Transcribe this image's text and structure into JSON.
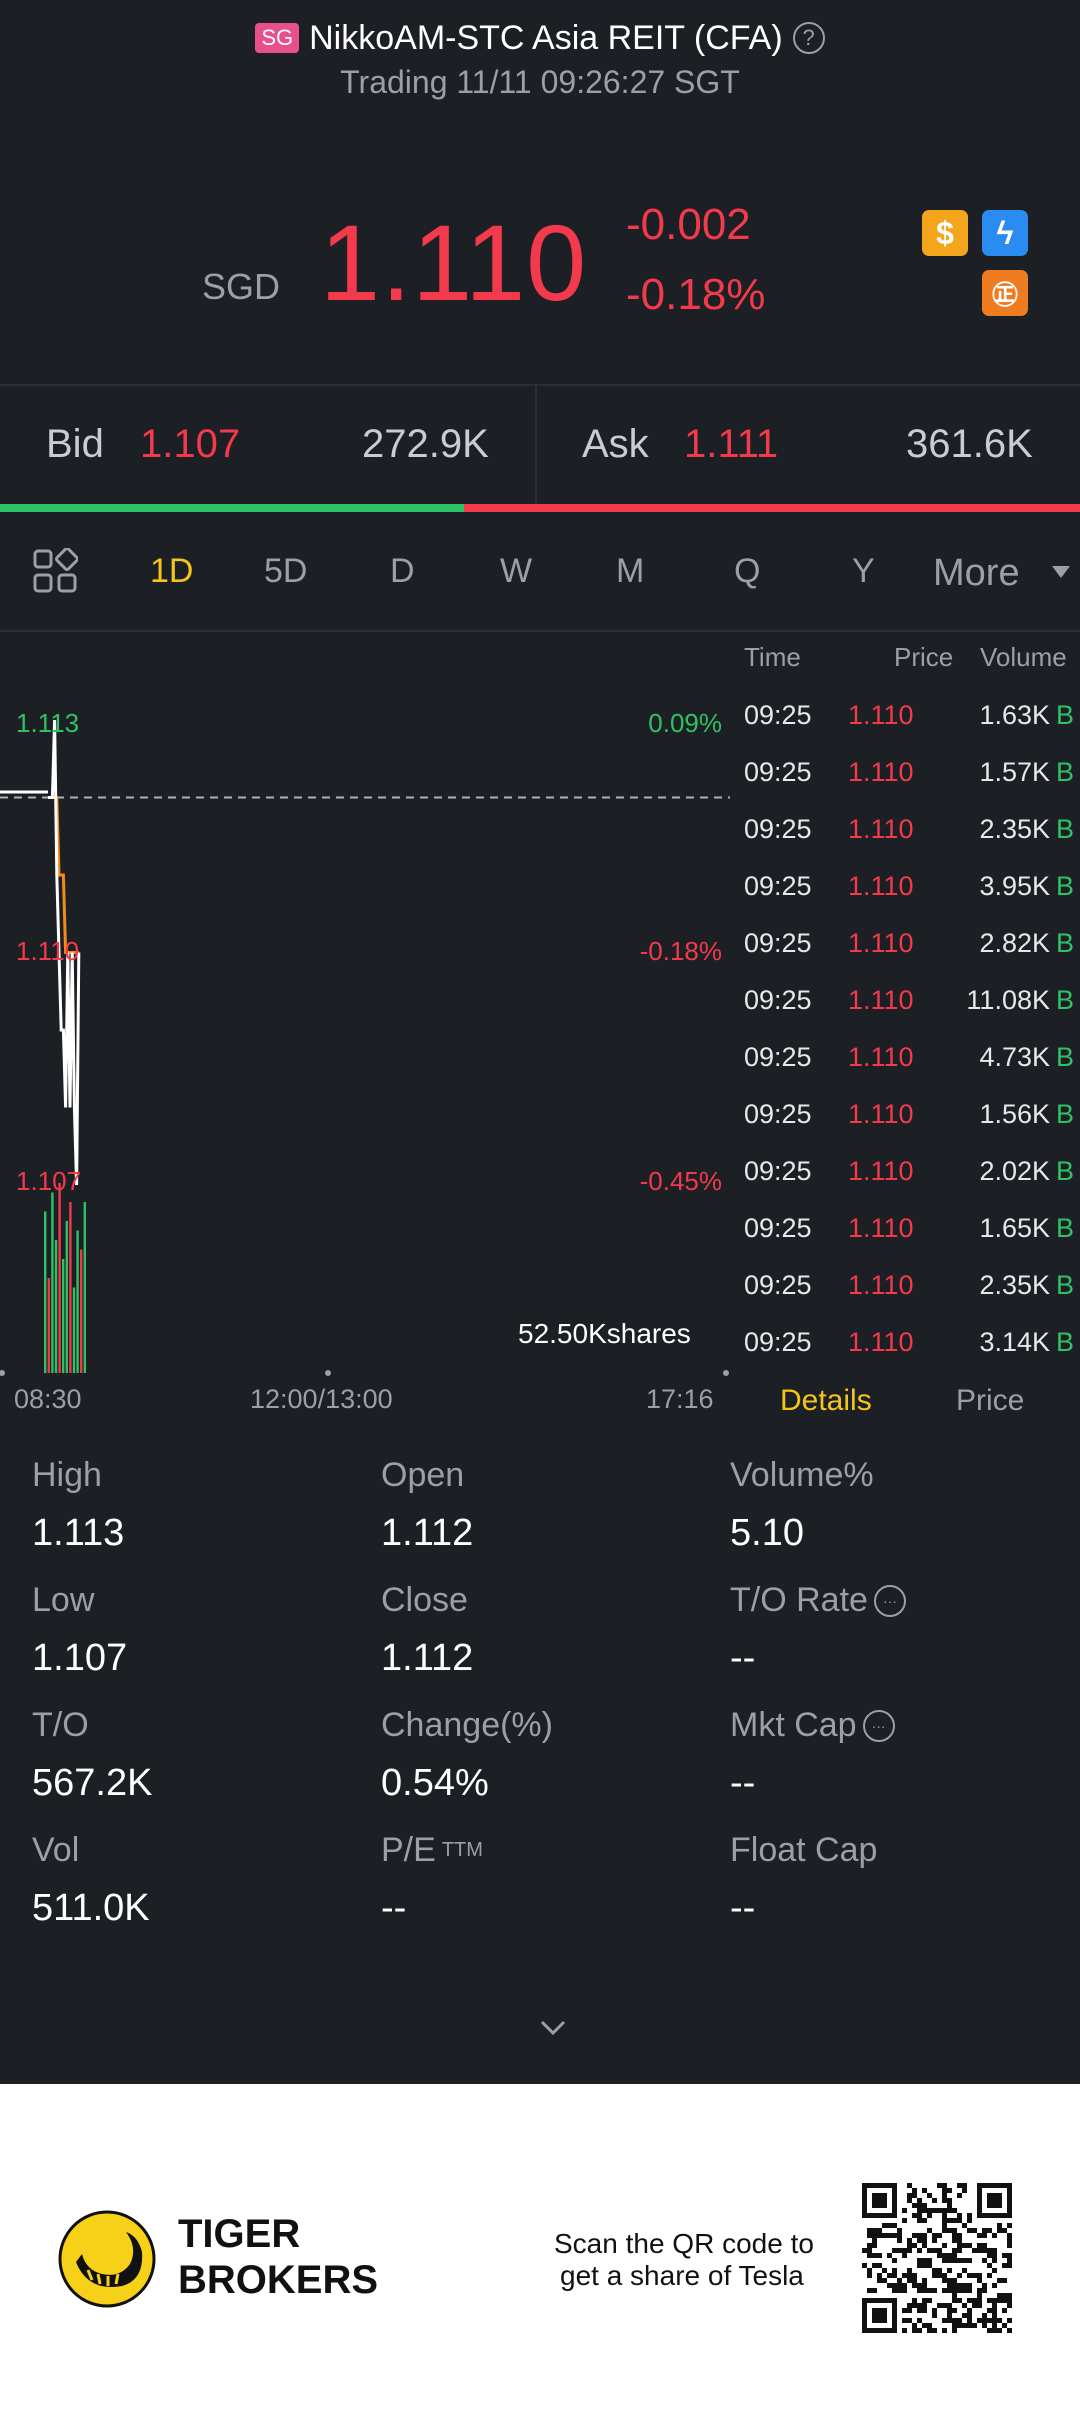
{
  "header": {
    "market_badge": "SG",
    "title": "NikkoAM-STC Asia REIT (CFA)",
    "help_icon": "?",
    "status": "Trading 11/11 09:26:27 SGT"
  },
  "quote": {
    "currency": "SGD",
    "last_price": "1.110",
    "change": "-0.002",
    "change_pct": "-0.18%",
    "price_color": "#f23a4c",
    "icons": [
      "dollar-icon",
      "flash-icon",
      "tiger-icon"
    ],
    "icon_glyphs": {
      "dollar": "$",
      "flash": "ϟ",
      "tiger": "㊣"
    }
  },
  "bid_ask": {
    "bid_label": "Bid",
    "bid_price": "1.107",
    "bid_volume": "272.9K",
    "ask_label": "Ask",
    "ask_price": "1.111",
    "ask_volume": "361.6K",
    "bid_ratio": 0.43
  },
  "tabs": {
    "items": [
      "1D",
      "5D",
      "D",
      "W",
      "M",
      "Q",
      "Y"
    ],
    "active": "1D",
    "more": "More"
  },
  "chart_data": {
    "type": "line",
    "price_labels": [
      {
        "price": "1.113",
        "pct": "0.09%"
      },
      {
        "price": "1.110",
        "pct": "-0.18%"
      },
      {
        "price": "1.107",
        "pct": "-0.45%"
      }
    ],
    "prev_close": 1.112,
    "ylim": [
      1.107,
      1.113
    ],
    "price_series": [
      1.112,
      1.112,
      1.112,
      1.113,
      1.111,
      1.11,
      1.109,
      1.109,
      1.108,
      1.11,
      1.108,
      1.11,
      1.108,
      1.107,
      1.11
    ],
    "avg_series": [
      1.112,
      1.112,
      1.112,
      1.112,
      1.112,
      1.111,
      1.111,
      1.111,
      1.11,
      1.11,
      1.11,
      1.11,
      1.11,
      1.11,
      1.11
    ],
    "volume_bars": [
      0.85,
      0.5,
      0.95,
      0.7,
      1.0,
      0.6,
      0.8,
      0.9,
      0.45,
      0.75,
      0.65,
      0.9
    ],
    "volume_label": "52.50Kshares",
    "time_axis": [
      "08:30",
      "12:00/13:00",
      "17:16"
    ]
  },
  "time_sales": {
    "headers": {
      "time": "Time",
      "price": "Price",
      "volume": "Volume"
    },
    "rows": [
      {
        "time": "09:25",
        "price": "1.110",
        "volume": "1.63K",
        "side": "B"
      },
      {
        "time": "09:25",
        "price": "1.110",
        "volume": "1.57K",
        "side": "B"
      },
      {
        "time": "09:25",
        "price": "1.110",
        "volume": "2.35K",
        "side": "B"
      },
      {
        "time": "09:25",
        "price": "1.110",
        "volume": "3.95K",
        "side": "B"
      },
      {
        "time": "09:25",
        "price": "1.110",
        "volume": "2.82K",
        "side": "B"
      },
      {
        "time": "09:25",
        "price": "1.110",
        "volume": "11.08K",
        "side": "B"
      },
      {
        "time": "09:25",
        "price": "1.110",
        "volume": "4.73K",
        "side": "B"
      },
      {
        "time": "09:25",
        "price": "1.110",
        "volume": "1.56K",
        "side": "B"
      },
      {
        "time": "09:25",
        "price": "1.110",
        "volume": "2.02K",
        "side": "B"
      },
      {
        "time": "09:25",
        "price": "1.110",
        "volume": "1.65K",
        "side": "B"
      },
      {
        "time": "09:25",
        "price": "1.110",
        "volume": "2.35K",
        "side": "B"
      },
      {
        "time": "09:25",
        "price": "1.110",
        "volume": "3.14K",
        "side": "B"
      }
    ],
    "tab_details": "Details",
    "tab_price": "Price"
  },
  "stats": {
    "col1": [
      {
        "label": "High",
        "value": "1.113"
      },
      {
        "label": "Low",
        "value": "1.107"
      },
      {
        "label": "T/O",
        "value": "567.2K"
      },
      {
        "label": "Vol",
        "value": "511.0K"
      }
    ],
    "col2": [
      {
        "label": "Open",
        "value": "1.112"
      },
      {
        "label": "Close",
        "value": "1.112"
      },
      {
        "label": "Change(%)",
        "value": "0.54%"
      },
      {
        "label": "P/E",
        "label_sup": "TTM",
        "value": "--"
      }
    ],
    "col3": [
      {
        "label": "Volume%",
        "value": "5.10"
      },
      {
        "label": "T/O Rate",
        "value": "--",
        "info": true
      },
      {
        "label": "Mkt Cap",
        "value": "--",
        "info": true
      },
      {
        "label": "Float Cap",
        "value": "--"
      }
    ],
    "info_glyph": "···"
  },
  "footer": {
    "brand_line_1": "TIGER",
    "brand_line_2": "BROKERS",
    "qr_line_1": "Scan the QR code to",
    "qr_line_2": "get a share of Tesla"
  }
}
